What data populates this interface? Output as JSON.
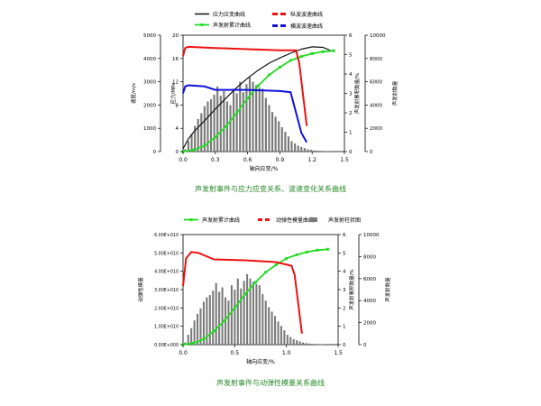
{
  "colors": {
    "stress": "#111111",
    "ae_cum": "#22dd22",
    "pwave": "#ee1111",
    "swave": "#1111dd",
    "bars": "#7a7a7a",
    "modulus": "#ee1111",
    "caption": "#2a8a2a"
  },
  "chart_data": [
    {
      "type": "line",
      "title": "",
      "caption": "声发射事件与应力应变关系、波速变化关系曲线",
      "xlabel": "轴向应变/%",
      "x_ticks": [
        "0.0",
        "0.3",
        "0.6",
        "0.9",
        "1.2",
        "1.5"
      ],
      "xlim": [
        0,
        1.5
      ],
      "axes": {
        "velocity": {
          "label": "速度/m/s",
          "ticks": [
            "0",
            "1000",
            "2000",
            "3000",
            "4000",
            "5000"
          ],
          "range": [
            0,
            5000
          ]
        },
        "stress": {
          "label": "应力/MPa",
          "ticks": [
            "0",
            "4",
            "8",
            "12",
            "16",
            "20"
          ],
          "range": [
            0,
            20
          ]
        },
        "ae_cum_axis": {
          "label": "声发射累积数量/%",
          "ticks": [
            "0",
            "1",
            "2",
            "3",
            "4",
            "5",
            "6"
          ],
          "range": [
            0,
            6
          ]
        },
        "ae_count_axis": {
          "label": "声发射数量",
          "ticks": [
            "0",
            "2000",
            "4000",
            "6000",
            "8000",
            "10000"
          ],
          "range": [
            0,
            10000
          ]
        }
      },
      "legend": [
        "应力应变曲线",
        "声发射累计曲线",
        "纵波波速曲线",
        "横波波速曲线"
      ],
      "series": [
        {
          "name": "应力应变曲线",
          "axis": "stress",
          "x": [
            0.0,
            0.05,
            0.1,
            0.2,
            0.3,
            0.4,
            0.5,
            0.6,
            0.7,
            0.8,
            0.9,
            1.0,
            1.1,
            1.2,
            1.3,
            1.38
          ],
          "y": [
            0.5,
            2.2,
            3.4,
            5.3,
            7.3,
            9.2,
            11.0,
            12.6,
            14.0,
            15.2,
            16.1,
            16.9,
            17.6,
            18.0,
            17.9,
            17.3
          ]
        },
        {
          "name": "声发射累计曲线",
          "axis": "ae_cum",
          "x": [
            0.0,
            0.1,
            0.2,
            0.3,
            0.4,
            0.5,
            0.6,
            0.7,
            0.8,
            0.9,
            1.0,
            1.1,
            1.2,
            1.3,
            1.4
          ],
          "y": [
            0.0,
            0.08,
            0.3,
            0.75,
            1.3,
            2.0,
            2.75,
            3.4,
            3.95,
            4.35,
            4.7,
            4.9,
            5.05,
            5.15,
            5.2
          ]
        },
        {
          "name": "纵波波速曲线",
          "axis": "velocity",
          "x": [
            0.0,
            0.02,
            0.05,
            0.3,
            0.6,
            0.9,
            1.05,
            1.08,
            1.15
          ],
          "y": [
            4100,
            4450,
            4500,
            4450,
            4400,
            4350,
            4350,
            3800,
            1100
          ]
        },
        {
          "name": "横波波速曲线",
          "axis": "velocity",
          "x": [
            0.0,
            0.02,
            0.05,
            0.2,
            0.3,
            0.6,
            0.9,
            1.0,
            1.1,
            1.15
          ],
          "y": [
            2500,
            2800,
            2850,
            2800,
            2650,
            2650,
            2600,
            2550,
            800,
            400
          ]
        }
      ],
      "bars": {
        "axis": "ae_count",
        "x": [
          0.02,
          0.05,
          0.08,
          0.11,
          0.14,
          0.17,
          0.2,
          0.23,
          0.26,
          0.29,
          0.32,
          0.35,
          0.38,
          0.41,
          0.44,
          0.47,
          0.5,
          0.53,
          0.56,
          0.59,
          0.62,
          0.65,
          0.68,
          0.71,
          0.74,
          0.77,
          0.8,
          0.83,
          0.86,
          0.89,
          0.92,
          0.95,
          0.98,
          1.01,
          1.04,
          1.07,
          1.1,
          1.13,
          1.16,
          1.19,
          1.22,
          1.25,
          1.28,
          1.31,
          1.34,
          1.37
        ],
        "values": [
          200,
          900,
          1500,
          2200,
          2800,
          3300,
          3900,
          4300,
          4500,
          4900,
          5600,
          4800,
          5200,
          4300,
          4000,
          5400,
          5000,
          6000,
          5100,
          5800,
          6400,
          6000,
          5700,
          5500,
          5400,
          4600,
          4000,
          3400,
          3000,
          2600,
          2100,
          1700,
          1300,
          900,
          700,
          500,
          400,
          300,
          200,
          150,
          100,
          80,
          60,
          50,
          40,
          30
        ]
      }
    },
    {
      "type": "line",
      "title": "",
      "caption": "声发射事件与动弹性模量关系曲线",
      "xlabel": "轴向应变/%",
      "x_ticks": [
        "0.0",
        "0.5",
        "1.0",
        "1.5"
      ],
      "xlim": [
        0,
        1.5
      ],
      "axes": {
        "modulus": {
          "label": "动弹性模量",
          "ticks": [
            "0.00E+000",
            "1.00E+010",
            "2.00E+010",
            "3.00E+010",
            "4.00E+010",
            "5.00E+010",
            "6.00E+010"
          ],
          "range": [
            0,
            6
          ]
        },
        "ae_cum_axis": {
          "label": "声发射累积数量/%",
          "ticks": [
            "0",
            "1",
            "2",
            "3",
            "4",
            "5",
            "6"
          ],
          "range": [
            0,
            6
          ]
        },
        "ae_count_axis": {
          "label": "声发射数量",
          "ticks": [
            "0",
            "2000",
            "4000",
            "6000",
            "8000",
            "10000"
          ],
          "range": [
            0,
            10000
          ]
        }
      },
      "legend": [
        "声发射累计曲线",
        "动弹性模量曲线",
        "声发射柱状图"
      ],
      "series": [
        {
          "name": "声发射累计曲线",
          "axis": "ae_cum",
          "x": [
            0.0,
            0.1,
            0.2,
            0.3,
            0.4,
            0.5,
            0.6,
            0.7,
            0.8,
            0.9,
            1.0,
            1.1,
            1.2,
            1.3,
            1.4
          ],
          "y": [
            0.0,
            0.08,
            0.3,
            0.75,
            1.3,
            2.0,
            2.75,
            3.4,
            3.95,
            4.35,
            4.7,
            4.9,
            5.05,
            5.15,
            5.2
          ]
        },
        {
          "name": "动弹性模量曲线",
          "axis": "modulus",
          "x": [
            0.0,
            0.03,
            0.08,
            0.15,
            0.3,
            0.6,
            0.9,
            1.05,
            1.08,
            1.15
          ],
          "y": [
            3.2,
            4.7,
            5.05,
            5.0,
            4.65,
            4.6,
            4.5,
            4.3,
            3.8,
            0.6
          ]
        }
      ],
      "bars": {
        "axis": "ae_count",
        "x": [
          0.02,
          0.05,
          0.08,
          0.11,
          0.14,
          0.17,
          0.2,
          0.23,
          0.26,
          0.29,
          0.32,
          0.35,
          0.38,
          0.41,
          0.44,
          0.47,
          0.5,
          0.53,
          0.56,
          0.59,
          0.62,
          0.65,
          0.68,
          0.71,
          0.74,
          0.77,
          0.8,
          0.83,
          0.86,
          0.89,
          0.92,
          0.95,
          0.98,
          1.01,
          1.04,
          1.07,
          1.1,
          1.13,
          1.16,
          1.19,
          1.22,
          1.25,
          1.28,
          1.31,
          1.34,
          1.37
        ],
        "values": [
          200,
          900,
          1500,
          2200,
          2800,
          3300,
          3900,
          4300,
          4500,
          4900,
          5600,
          4800,
          5200,
          4300,
          4000,
          5400,
          5000,
          6000,
          5100,
          5800,
          6400,
          6000,
          5700,
          5500,
          5400,
          4600,
          4000,
          3400,
          3000,
          2600,
          2100,
          1700,
          1300,
          900,
          700,
          500,
          400,
          300,
          200,
          150,
          100,
          80,
          60,
          50,
          40,
          30
        ]
      }
    }
  ]
}
